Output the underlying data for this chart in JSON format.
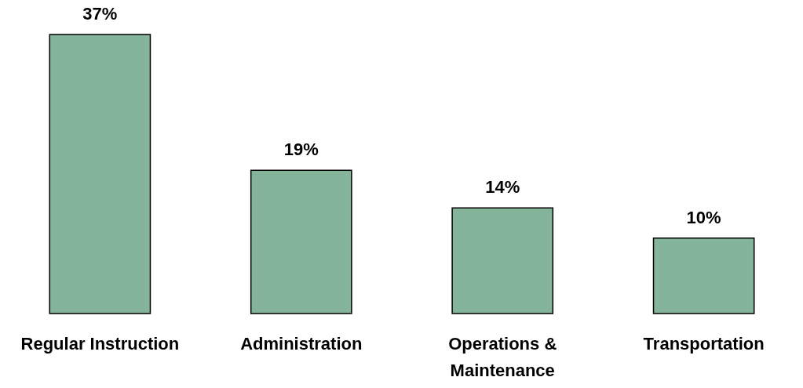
{
  "chart_data": {
    "type": "bar",
    "categories": [
      "Regular Instruction",
      "Administration",
      "Operations & Maintenance",
      "Transportation"
    ],
    "values": [
      37,
      19,
      14,
      10
    ],
    "value_labels": [
      "37%",
      "19%",
      "14%",
      "10%"
    ],
    "color": "#84b59a"
  }
}
